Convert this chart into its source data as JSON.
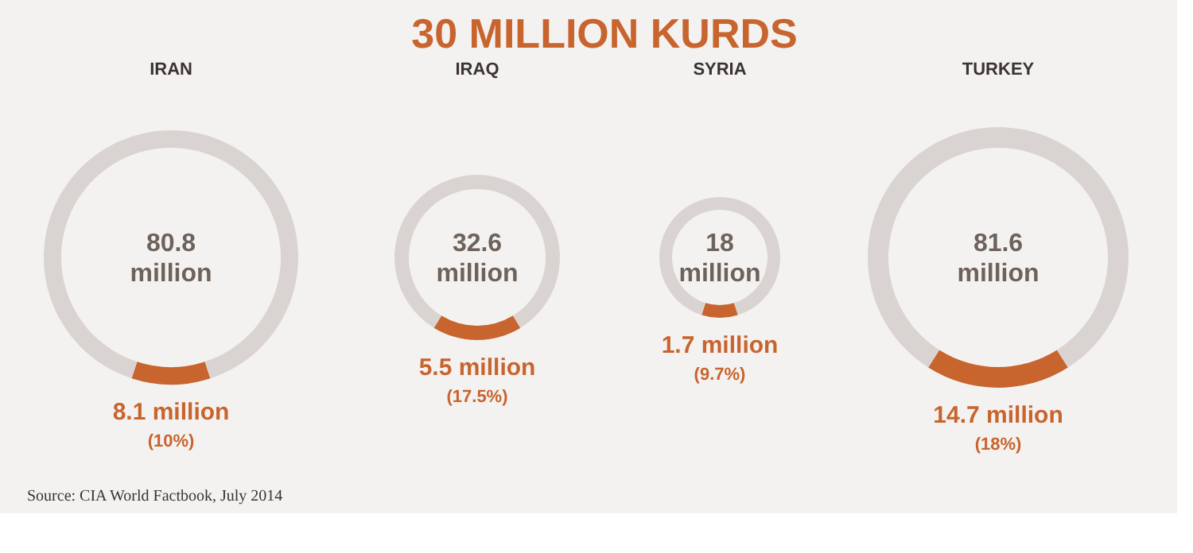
{
  "chart_data": [
    {
      "type": "donut",
      "title": "IRAN",
      "categories": [
        null,
        null
      ],
      "values": [
        10,
        90
      ],
      "colors": [
        "#c8642e",
        "#d9d4d1"
      ],
      "value_labels": [
        "8.1 million\n(10%)",
        null
      ],
      "annotations": [
        "80.8\nmillion",
        "30 MILLION KURDS",
        "Source:  CIA World Factbook, July 2014"
      ]
    },
    {
      "type": "donut",
      "title": "IRAQ",
      "categories": [
        null,
        null
      ],
      "values": [
        17.5,
        82.5
      ],
      "colors": [
        "#c8642e",
        "#d9d4d1"
      ],
      "value_labels": [
        "5.5 million\n(17.5%)",
        null
      ],
      "annotations": [
        "32.6\nmillion"
      ]
    },
    {
      "type": "donut",
      "title": "SYRIA",
      "categories": [
        null,
        null
      ],
      "values": [
        9.7,
        90.3
      ],
      "colors": [
        "#c8642e",
        "#d9d4d1"
      ],
      "value_labels": [
        "1.7 million\n(9.7%)",
        null
      ],
      "annotations": [
        "18\nmillion"
      ]
    },
    {
      "type": "donut",
      "title": "TURKEY",
      "categories": [
        null,
        null
      ],
      "values": [
        18,
        82
      ],
      "colors": [
        "#c8642e",
        "#d9d4d1"
      ],
      "value_labels": [
        "14.7 million\n(18%)",
        null
      ],
      "annotations": [
        "81.6\nmillion"
      ]
    }
  ]
}
